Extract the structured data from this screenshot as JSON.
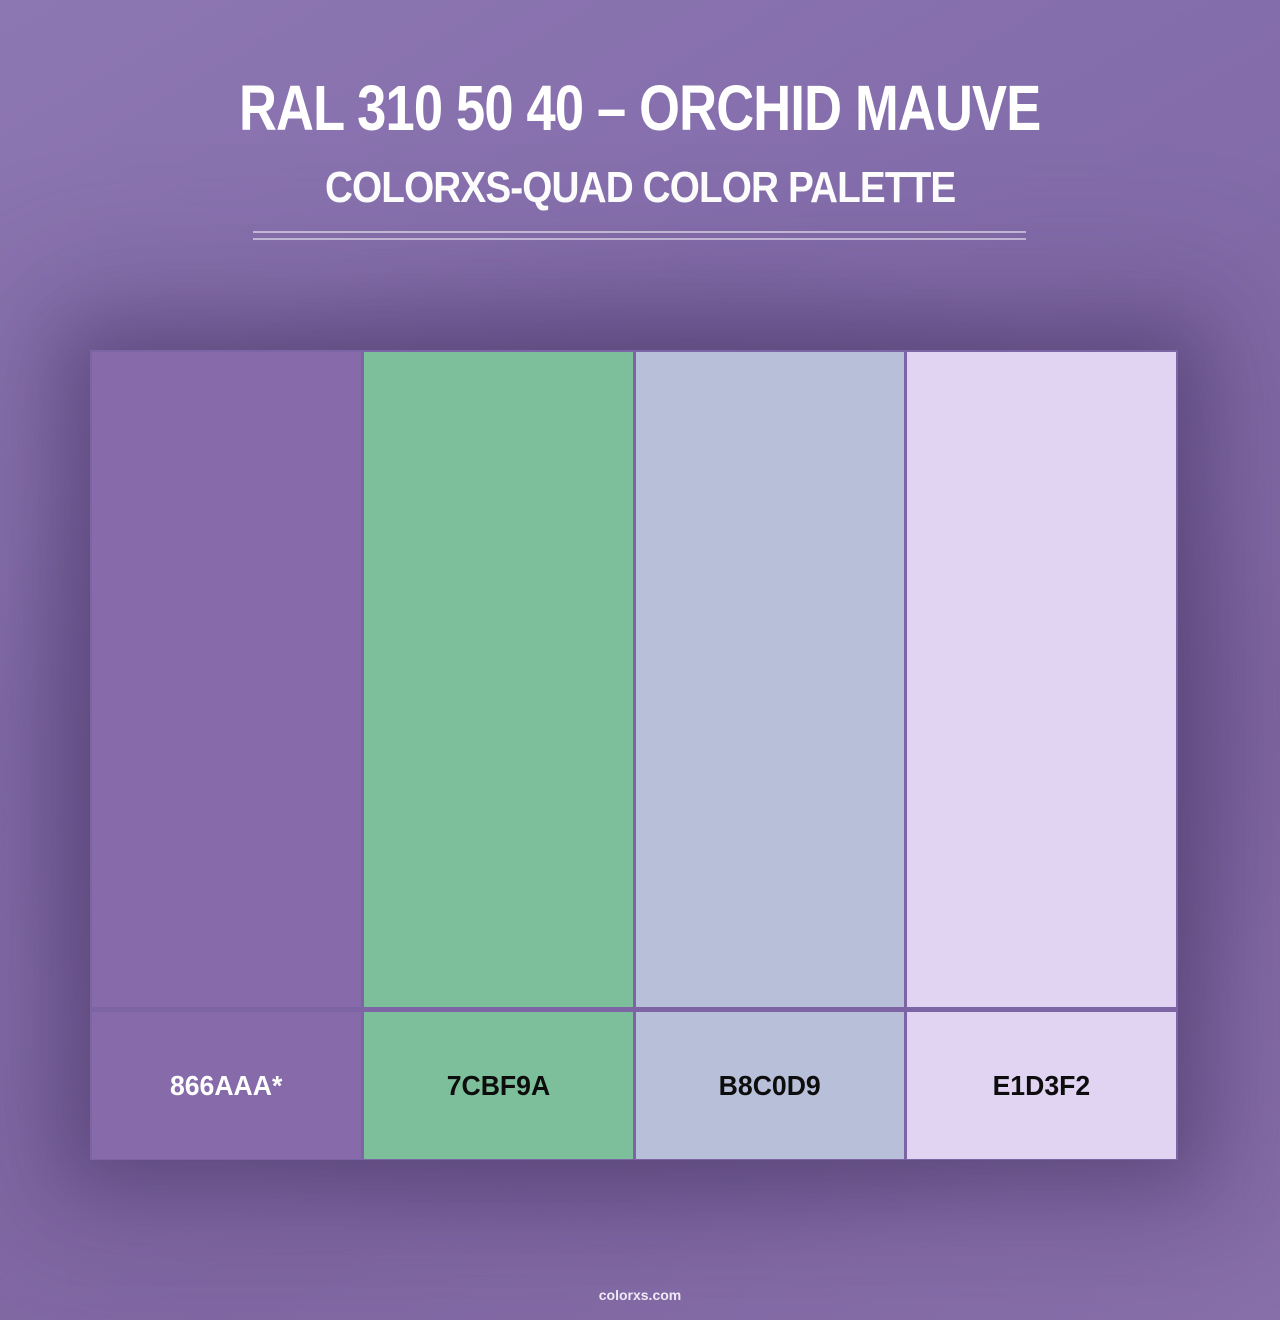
{
  "page": {
    "title": "RAL 310 50 40 – ORCHID MAUVE",
    "subtitle": "COLORXS-QUAD COLOR PALETTE",
    "footer": "colorxs.com"
  },
  "palette": {
    "scheme_name": "colorxs-quad",
    "swatches": [
      {
        "hex": "#866AAA",
        "label": "866AAA*",
        "label_color": "#FFFFFF",
        "is_base_color": true
      },
      {
        "hex": "#7CBF9A",
        "label": "7CBF9A",
        "label_color": "#0D0D0D",
        "is_base_color": false
      },
      {
        "hex": "#B8C0D9",
        "label": "B8C0D9",
        "label_color": "#0D0D0D",
        "is_base_color": false
      },
      {
        "hex": "#E1D3F2",
        "label": "E1D3F2",
        "label_color": "#0D0D0D",
        "is_base_color": false
      }
    ]
  },
  "colors": {
    "page_background": "#8670AB",
    "card_border": "#7D64A4",
    "divider_line": "#CFC6E2",
    "title_text": "#FFFFFF"
  }
}
